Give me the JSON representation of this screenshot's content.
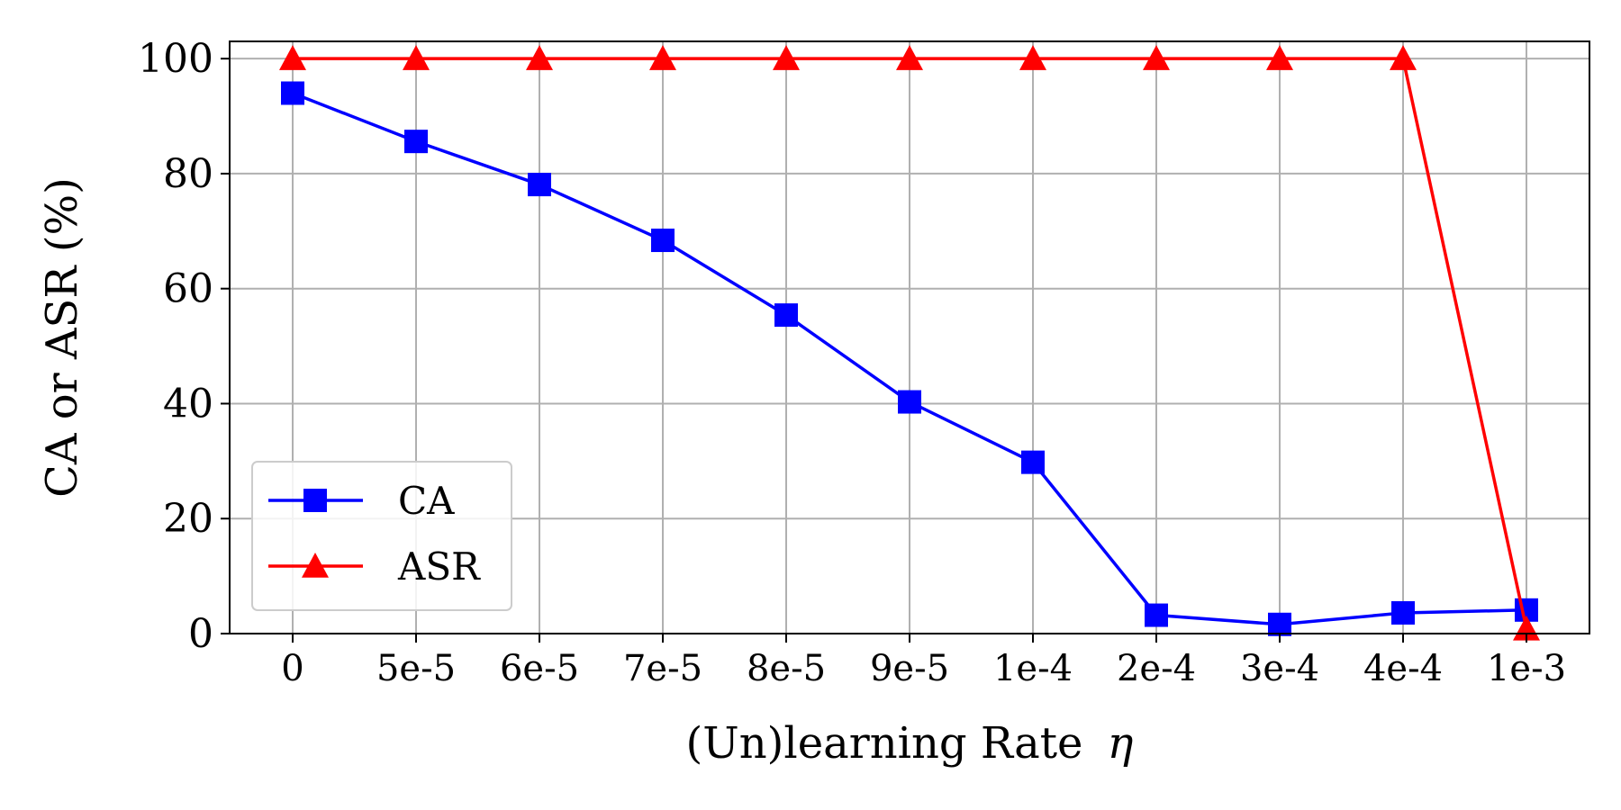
{
  "chart_data": {
    "type": "line",
    "categories": [
      "0",
      "5e-5",
      "6e-5",
      "7e-5",
      "8e-5",
      "9e-5",
      "1e-4",
      "2e-4",
      "3e-4",
      "4e-4",
      "1e-3"
    ],
    "series": [
      {
        "name": "CA",
        "color": "#0000ff",
        "marker": "square",
        "values": [
          94.0,
          85.6,
          78.1,
          68.4,
          55.4,
          40.3,
          29.8,
          3.2,
          1.6,
          3.6,
          4.1
        ]
      },
      {
        "name": "ASR",
        "color": "#ff0000",
        "marker": "triangle",
        "values": [
          100,
          100,
          100,
          100,
          100,
          100,
          100,
          100,
          100,
          100,
          0.8
        ]
      }
    ],
    "title": "",
    "xlabel": "(Un)learning Rate",
    "xlabel_symbol": "η",
    "ylabel": "CA or ASR (%)",
    "ylim": [
      0,
      103
    ],
    "yticks": [
      0,
      20,
      40,
      60,
      80,
      100
    ],
    "grid": true,
    "legend_position": "lower-left"
  }
}
